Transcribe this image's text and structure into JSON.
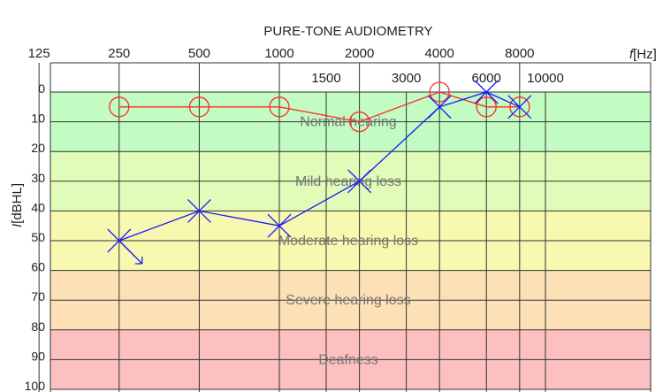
{
  "chart_data": {
    "type": "line",
    "title": "PURE-TONE AUDIOMETRY",
    "xlabel_italic": "f",
    "xlabel_unit": "[Hz]",
    "ylabel_italic": "I",
    "ylabel_unit": "[dBHL]",
    "x_scale": "log",
    "ylim": [
      0,
      100
    ],
    "y_reversed": true,
    "x_ticks_top": [
      {
        "label": "125",
        "value": 125
      },
      {
        "label": "250",
        "value": 250
      },
      {
        "label": "500",
        "value": 500
      },
      {
        "label": "1000",
        "value": 1000
      },
      {
        "label": "2000",
        "value": 2000
      },
      {
        "label": "4000",
        "value": 4000
      },
      {
        "label": "8000",
        "value": 8000
      }
    ],
    "x_ticks_mid": [
      {
        "label": "1500",
        "value": 1500
      },
      {
        "label": "3000",
        "value": 3000
      },
      {
        "label": "6000",
        "value": 6000
      },
      {
        "label": "10000",
        "value": 10000
      }
    ],
    "y_ticks": [
      0,
      10,
      20,
      30,
      40,
      50,
      60,
      70,
      80,
      90,
      100
    ],
    "bands": [
      {
        "label": "Normal hearing",
        "from": 0,
        "to": 20,
        "color": "#c2fcc2"
      },
      {
        "label": "Mild hearing loss",
        "from": 20,
        "to": 40,
        "color": "#e0fcb8"
      },
      {
        "label": "Moderate hearing loss",
        "from": 40,
        "to": 60,
        "color": "#f8f8b0"
      },
      {
        "label": "Severe hearing loss",
        "from": 60,
        "to": 80,
        "color": "#fde0b6"
      },
      {
        "label": "Deafness",
        "from": 80,
        "to": 100,
        "color": "#fdc0c0"
      }
    ],
    "series": [
      {
        "marker": "circle",
        "color": "#ff2a2a",
        "x": [
          250,
          500,
          1000,
          2000,
          4000,
          6000,
          8000
        ],
        "y": [
          5,
          5,
          5,
          10,
          0,
          5,
          5
        ]
      },
      {
        "marker": "cross",
        "color": "#1a1aff",
        "x": [
          250,
          500,
          1000,
          2000,
          4000,
          6000,
          8000
        ],
        "y": [
          50,
          40,
          45,
          30,
          5,
          0,
          5
        ],
        "annotation_arrow_at": 0
      }
    ]
  }
}
